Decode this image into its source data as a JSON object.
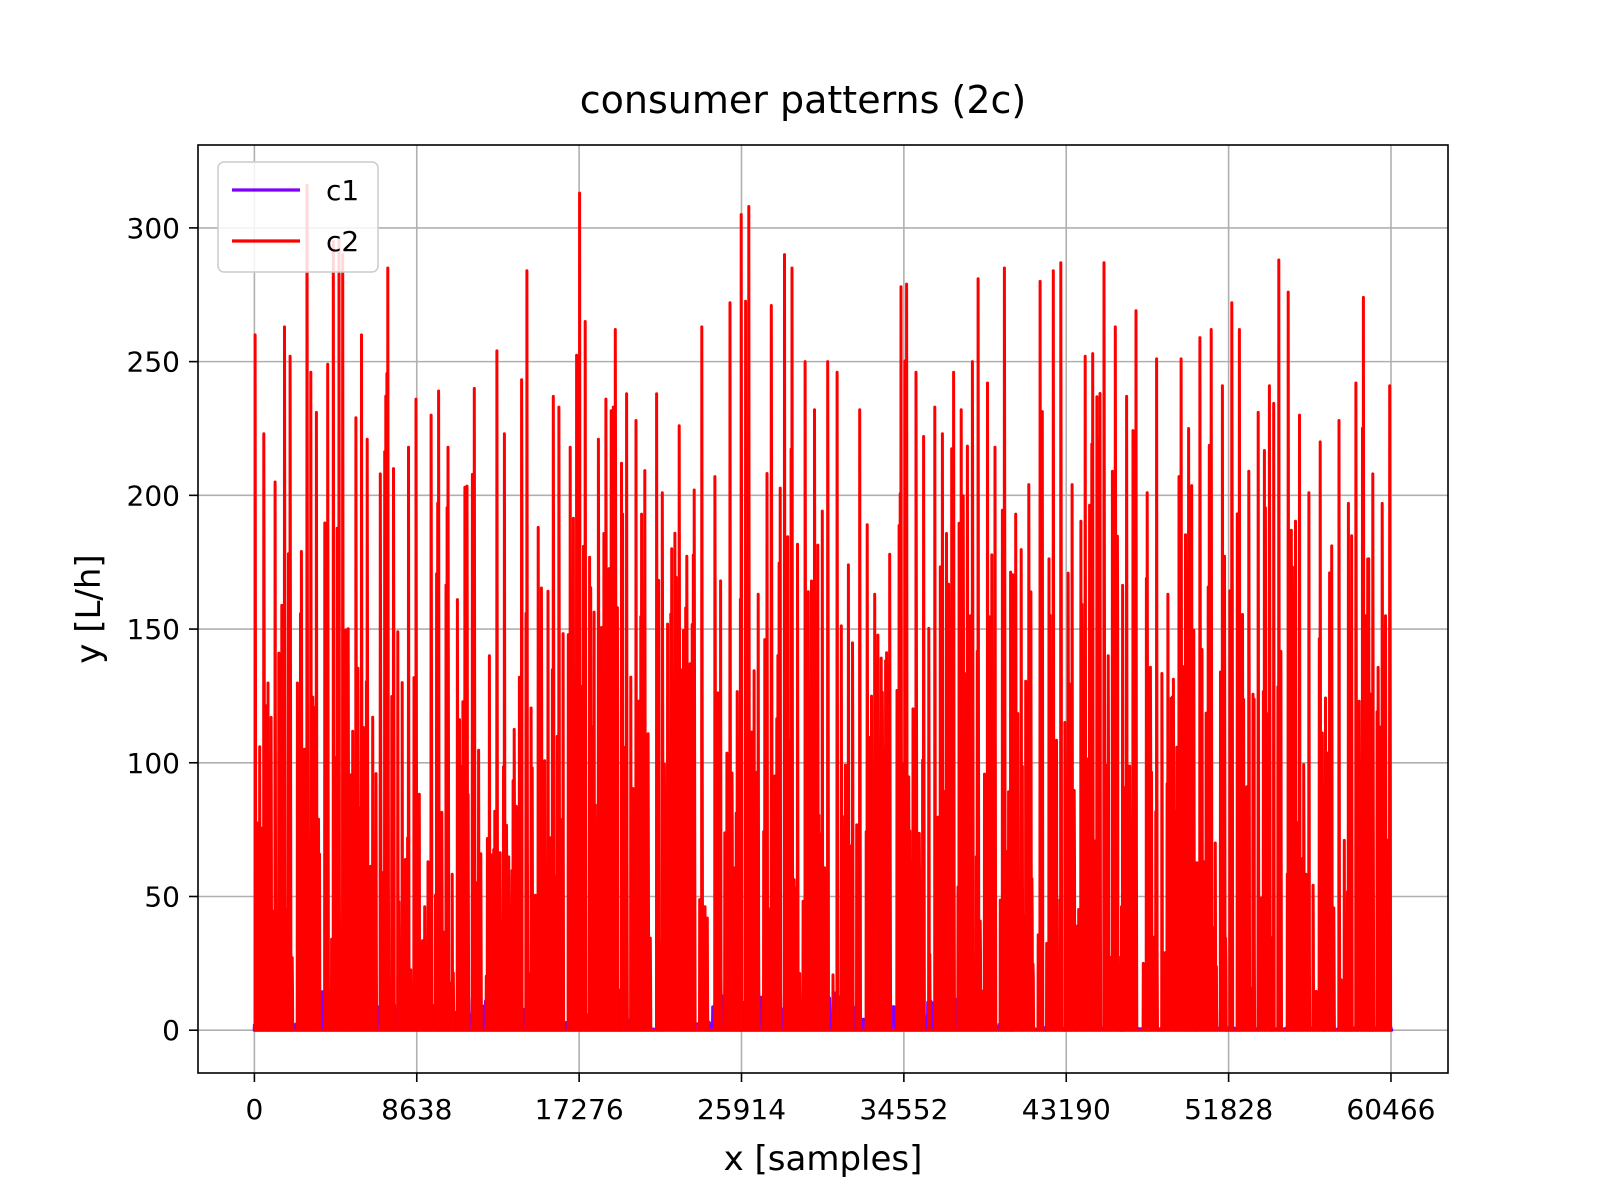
{
  "chart_data": {
    "type": "line",
    "title": "consumer patterns (2c)",
    "xlabel": "x [samples]",
    "ylabel": "y [L/h]",
    "xlim": [
      -3000,
      63500
    ],
    "ylim": [
      -16,
      331
    ],
    "xticks": [
      0,
      8638,
      17276,
      25914,
      34552,
      43190,
      51828,
      60466
    ],
    "xtick_labels": [
      "0",
      "8638",
      "17276",
      "25914",
      "34552",
      "43190",
      "51828",
      "60466"
    ],
    "yticks": [
      0,
      50,
      100,
      150,
      200,
      250,
      300
    ],
    "ytick_labels": [
      "0",
      "50",
      "100",
      "150",
      "200",
      "250",
      "300"
    ],
    "grid": true,
    "legend_position": "top-left",
    "series": [
      {
        "name": "c1",
        "color": "#7f00ff",
        "style": "low-level pulses between 0 and ~20",
        "peaks": [
          [
            0,
            2
          ],
          [
            700,
            9
          ],
          [
            1900,
            6
          ],
          [
            3300,
            5
          ],
          [
            4900,
            17
          ],
          [
            6400,
            6
          ],
          [
            8100,
            14
          ],
          [
            9800,
            17
          ],
          [
            11400,
            12
          ],
          [
            13000,
            16
          ],
          [
            14600,
            21
          ],
          [
            16200,
            16
          ],
          [
            17800,
            6
          ],
          [
            19400,
            15
          ],
          [
            21000,
            8
          ],
          [
            22600,
            1
          ],
          [
            24200,
            3
          ],
          [
            25800,
            15
          ],
          [
            27400,
            14
          ],
          [
            29000,
            16
          ],
          [
            30600,
            12
          ],
          [
            32200,
            16
          ],
          [
            33800,
            12
          ],
          [
            35400,
            19
          ],
          [
            37000,
            14
          ],
          [
            38600,
            13
          ],
          [
            40200,
            3
          ],
          [
            42000,
            1
          ],
          [
            46000,
            1
          ],
          [
            50000,
            1
          ],
          [
            54000,
            1
          ],
          [
            58000,
            1
          ],
          [
            60466,
            1
          ]
        ]
      },
      {
        "name": "c2",
        "color": "#ff0000",
        "style": "dense spikes from 0 up to ~313",
        "peaks": [
          [
            40,
            260
          ],
          [
            280,
            106
          ],
          [
            500,
            223
          ],
          [
            1100,
            205
          ],
          [
            1300,
            141
          ],
          [
            1600,
            263
          ],
          [
            1900,
            252
          ],
          [
            2500,
            179
          ],
          [
            2800,
            316
          ],
          [
            3000,
            246
          ],
          [
            3300,
            231
          ],
          [
            3900,
            249
          ],
          [
            4200,
            295
          ],
          [
            4500,
            296
          ],
          [
            4700,
            290
          ],
          [
            5400,
            229
          ],
          [
            5700,
            260
          ],
          [
            6000,
            221
          ],
          [
            6700,
            208
          ],
          [
            7100,
            285
          ],
          [
            7400,
            210
          ],
          [
            8200,
            218
          ],
          [
            8600,
            236
          ],
          [
            9400,
            230
          ],
          [
            9800,
            239
          ],
          [
            10300,
            218
          ],
          [
            10800,
            161
          ],
          [
            11200,
            203
          ],
          [
            11700,
            240
          ],
          [
            12500,
            140
          ],
          [
            12900,
            254
          ],
          [
            13300,
            223
          ],
          [
            14100,
            132
          ],
          [
            14500,
            284
          ],
          [
            15100,
            188
          ],
          [
            15900,
            237
          ],
          [
            16200,
            233
          ],
          [
            16800,
            218
          ],
          [
            17300,
            313
          ],
          [
            17600,
            265
          ],
          [
            18300,
            221
          ],
          [
            18700,
            236
          ],
          [
            19200,
            262
          ],
          [
            19800,
            238
          ],
          [
            20300,
            228
          ],
          [
            20600,
            193
          ],
          [
            21400,
            238
          ],
          [
            21700,
            201
          ],
          [
            22200,
            180
          ],
          [
            22600,
            226
          ],
          [
            23400,
            202
          ],
          [
            23800,
            263
          ],
          [
            24500,
            207
          ],
          [
            24800,
            168
          ],
          [
            25300,
            272
          ],
          [
            25900,
            305
          ],
          [
            26300,
            308
          ],
          [
            26800,
            163
          ],
          [
            27500,
            271
          ],
          [
            28200,
            290
          ],
          [
            28600,
            285
          ],
          [
            29300,
            250
          ],
          [
            29800,
            232
          ],
          [
            30500,
            250
          ],
          [
            31000,
            246
          ],
          [
            31600,
            174
          ],
          [
            32200,
            232
          ],
          [
            32600,
            189
          ],
          [
            33000,
            163
          ],
          [
            33800,
            178
          ],
          [
            34400,
            278
          ],
          [
            34700,
            279
          ],
          [
            35200,
            246
          ],
          [
            35600,
            222
          ],
          [
            36200,
            233
          ],
          [
            36600,
            223
          ],
          [
            37200,
            246
          ],
          [
            37600,
            232
          ],
          [
            38200,
            250
          ],
          [
            38500,
            281
          ],
          [
            39000,
            242
          ],
          [
            39400,
            218
          ],
          [
            39900,
            285
          ],
          [
            40500,
            193
          ],
          [
            41200,
            204
          ],
          [
            41800,
            280
          ],
          [
            42500,
            284
          ],
          [
            42900,
            287
          ],
          [
            43500,
            204
          ],
          [
            44200,
            252
          ],
          [
            44600,
            253
          ],
          [
            45200,
            287
          ],
          [
            45800,
            263
          ],
          [
            46400,
            237
          ],
          [
            46900,
            269
          ],
          [
            47500,
            201
          ],
          [
            48000,
            251
          ],
          [
            48600,
            163
          ],
          [
            49300,
            251
          ],
          [
            49700,
            225
          ],
          [
            50300,
            259
          ],
          [
            50900,
            262
          ],
          [
            51500,
            241
          ],
          [
            52000,
            272
          ],
          [
            52400,
            262
          ],
          [
            52900,
            209
          ],
          [
            53400,
            231
          ],
          [
            54000,
            241
          ],
          [
            54500,
            288
          ],
          [
            55000,
            276
          ],
          [
            55600,
            230
          ],
          [
            56100,
            201
          ],
          [
            56700,
            220
          ],
          [
            57200,
            171
          ],
          [
            57700,
            228
          ],
          [
            58200,
            197
          ],
          [
            58600,
            242
          ],
          [
            59000,
            274
          ],
          [
            59500,
            208
          ],
          [
            60000,
            197
          ],
          [
            60400,
            241
          ]
        ]
      }
    ]
  }
}
